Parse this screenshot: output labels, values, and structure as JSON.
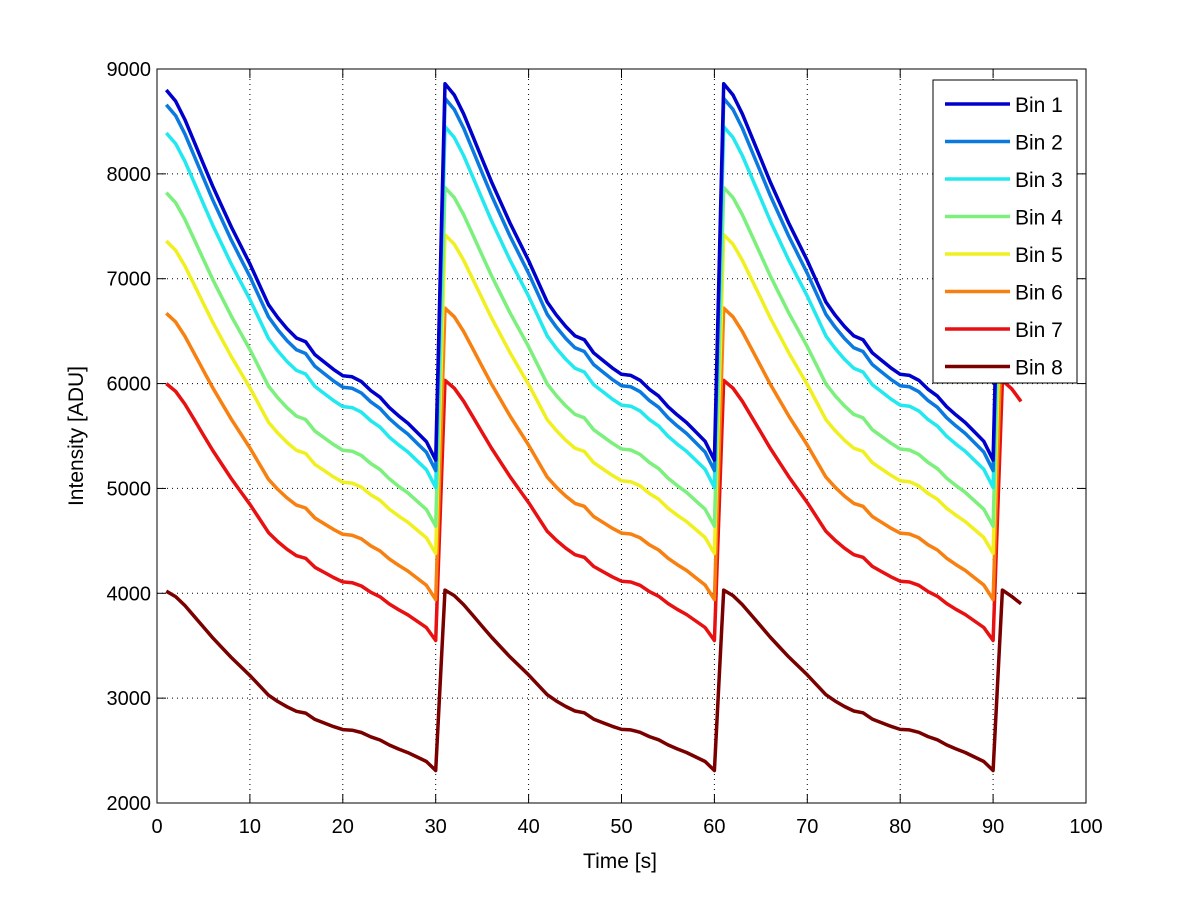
{
  "chart_data": {
    "type": "line",
    "title": "",
    "xlabel": "Time [s]",
    "ylabel": "Intensity [ADU]",
    "xlim": [
      0,
      100
    ],
    "ylim": [
      2000,
      9000
    ],
    "xticks": [
      0,
      10,
      20,
      30,
      40,
      50,
      60,
      70,
      80,
      90,
      100
    ],
    "yticks": [
      2000,
      3000,
      4000,
      5000,
      6000,
      7000,
      8000,
      9000
    ],
    "xtick_labels": [
      "0",
      "10",
      "20",
      "30",
      "40",
      "50",
      "60",
      "70",
      "80",
      "90",
      "100"
    ],
    "ytick_labels": [
      "2000",
      "3000",
      "4000",
      "5000",
      "6000",
      "7000",
      "8000",
      "9000"
    ],
    "grid": true,
    "legend_position": "top-right",
    "x": [
      1,
      2,
      3,
      4,
      5,
      6,
      7,
      8,
      9,
      10,
      11,
      12,
      13,
      14,
      15,
      16,
      17,
      18,
      19,
      20,
      21,
      22,
      23,
      24,
      25,
      26,
      27,
      28,
      29,
      30,
      31,
      32,
      33,
      34,
      35,
      36,
      37,
      38,
      39,
      40,
      41,
      42,
      43,
      44,
      45,
      46,
      47,
      48,
      49,
      50,
      51,
      52,
      53,
      54,
      55,
      56,
      57,
      58,
      59,
      60,
      61,
      62,
      63,
      64,
      65,
      66,
      67,
      68,
      69,
      70,
      71,
      72,
      73,
      74,
      75,
      76,
      77,
      78,
      79,
      80,
      81,
      82,
      83,
      84,
      85,
      86,
      87,
      88,
      89,
      90,
      91,
      92,
      93
    ],
    "series": [
      {
        "name": "Bin 1",
        "color": "#0000cc",
        "start": 8800,
        "end": 5270,
        "peak": 8860,
        "tail": [
          8860,
          8700,
          8500
        ]
      },
      {
        "name": "Bin 2",
        "color": "#0a7ae0",
        "start": 8660,
        "end": 5170,
        "peak": 8720,
        "tail": [
          8720,
          8560,
          8370
        ]
      },
      {
        "name": "Bin 3",
        "color": "#22e8f0",
        "start": 8390,
        "end": 5010,
        "peak": 8450,
        "tail": [
          8450,
          8300,
          8110
        ]
      },
      {
        "name": "Bin 4",
        "color": "#7cf07c",
        "start": 7820,
        "end": 4640,
        "peak": 7870,
        "tail": [
          7870,
          7740,
          7560
        ]
      },
      {
        "name": "Bin 5",
        "color": "#f0f020",
        "start": 7360,
        "end": 4380,
        "peak": 7420,
        "tail": [
          7420,
          7280,
          7110
        ]
      },
      {
        "name": "Bin 6",
        "color": "#f78010",
        "start": 6670,
        "end": 3940,
        "peak": 6720,
        "tail": [
          6720,
          6600,
          6430
        ]
      },
      {
        "name": "Bin 7",
        "color": "#e81010",
        "start": 6000,
        "end": 3550,
        "peak": 6030,
        "tail": [
          6030,
          5950,
          5830
        ]
      },
      {
        "name": "Bin 8",
        "color": "#7a0000",
        "start": 4020,
        "end": 2310,
        "peak": 4030,
        "tail": [
          4030,
          3970,
          3900
        ]
      }
    ],
    "decay_profile": [
      0.0,
      0.03,
      0.08,
      0.14,
      0.2,
      0.26,
      0.315,
      0.37,
      0.42,
      0.47,
      0.525,
      0.58,
      0.615,
      0.645,
      0.67,
      0.68,
      0.715,
      0.735,
      0.755,
      0.772,
      0.775,
      0.788,
      0.812,
      0.83,
      0.858,
      0.88,
      0.9,
      0.925,
      0.95,
      1.0
    ]
  }
}
